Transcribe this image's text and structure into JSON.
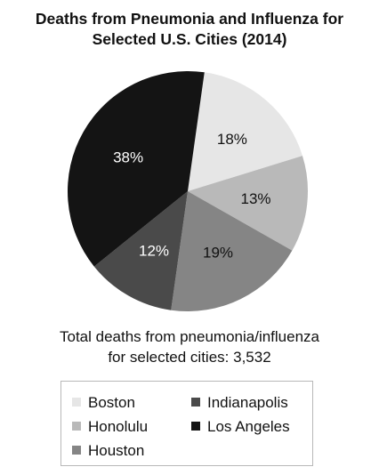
{
  "chart_data": {
    "type": "pie",
    "title_lines": [
      "Deaths from Pneumonia and Influenza for",
      "Selected U.S. Cities (2014)"
    ],
    "categories": [
      "Boston",
      "Honolulu",
      "Houston",
      "Indianapolis",
      "Los Angeles"
    ],
    "values": [
      18,
      13,
      19,
      12,
      38
    ],
    "value_labels": [
      "18%",
      "13%",
      "19%",
      "12%",
      "38%"
    ],
    "colors": [
      "#e6e6e6",
      "#b9b9b9",
      "#858585",
      "#4a4a4a",
      "#141414"
    ],
    "label_colors": [
      "#111111",
      "#111111",
      "#111111",
      "#ffffff",
      "#ffffff"
    ],
    "total_lines": [
      "Total deaths from pneumonia/influenza",
      "for selected cities: 3,532"
    ],
    "legend_position": "bottom"
  }
}
